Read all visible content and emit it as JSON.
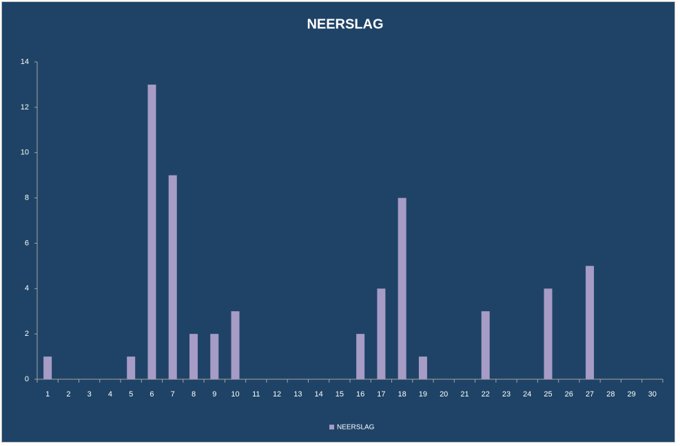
{
  "chart_data": {
    "type": "bar",
    "title": "NEERSLAG",
    "categories": [
      "1",
      "2",
      "3",
      "4",
      "5",
      "6",
      "7",
      "8",
      "9",
      "10",
      "11",
      "12",
      "13",
      "14",
      "15",
      "16",
      "17",
      "18",
      "19",
      "20",
      "21",
      "22",
      "23",
      "24",
      "25",
      "26",
      "27",
      "28",
      "29",
      "30"
    ],
    "series": [
      {
        "name": "NEERSLAG",
        "color": "#a69cc6",
        "values": [
          1,
          0,
          0,
          0,
          1,
          13,
          9,
          2,
          2,
          3,
          0,
          0,
          0,
          0,
          0,
          2,
          4,
          8,
          1,
          0,
          0,
          3,
          0,
          0,
          4,
          0,
          5,
          0,
          0,
          0
        ]
      }
    ],
    "ylim": [
      0,
      14
    ],
    "yticks": [
      0,
      2,
      4,
      6,
      8,
      10,
      12,
      14
    ],
    "grid": false,
    "legend": "bottom"
  }
}
